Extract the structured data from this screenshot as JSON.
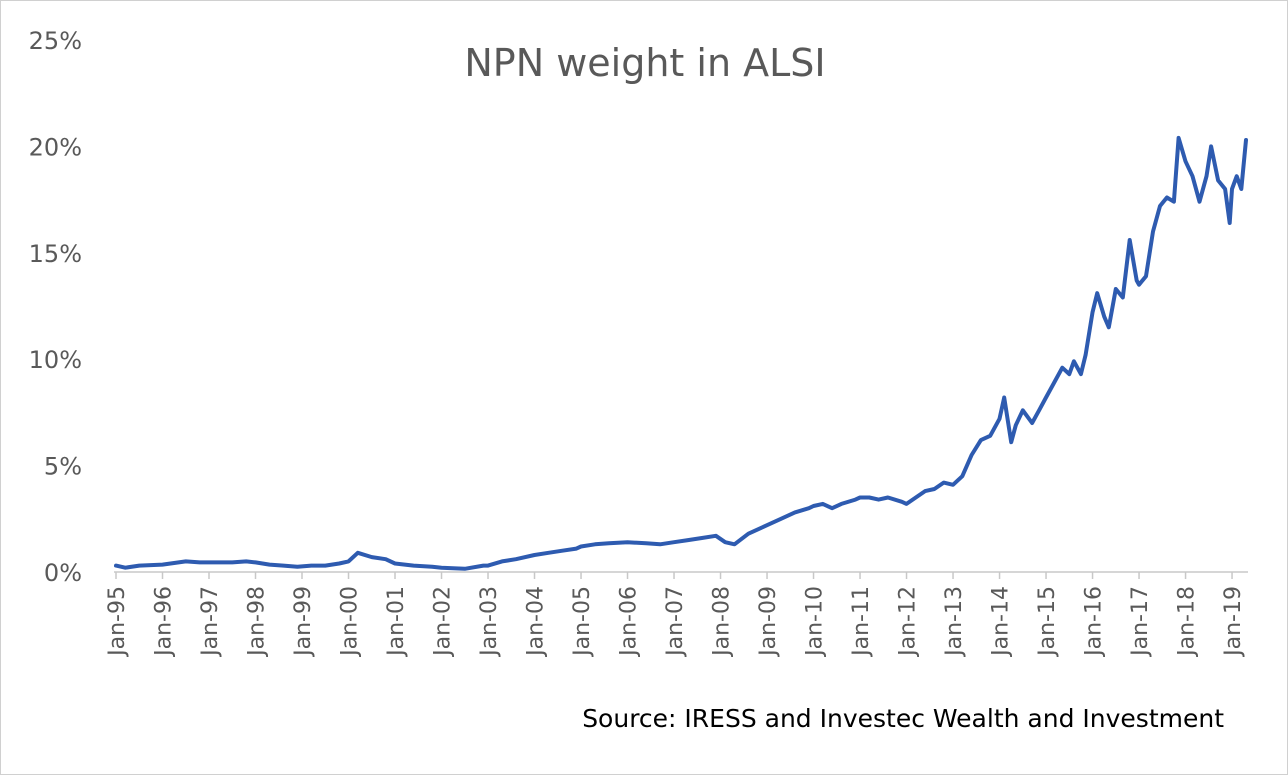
{
  "chart_data": {
    "type": "line",
    "title": "NPN weight in ALSI",
    "xlabel": "",
    "ylabel": "",
    "ylim": [
      0,
      25
    ],
    "y_ticks": [
      "0%",
      "5%",
      "10%",
      "15%",
      "20%",
      "25%"
    ],
    "y_tick_values": [
      0,
      5,
      10,
      15,
      20,
      25
    ],
    "x_tick_labels": [
      "Jan-95",
      "Jan-96",
      "Jan-97",
      "Jan-98",
      "Jan-99",
      "Jan-00",
      "Jan-01",
      "Jan-02",
      "Jan-03",
      "Jan-04",
      "Jan-05",
      "Jan-06",
      "Jan-07",
      "Jan-08",
      "Jan-09",
      "Jan-10",
      "Jan-11",
      "Jan-12",
      "Jan-13",
      "Jan-14",
      "Jan-15",
      "Jan-16",
      "Jan-17",
      "Jan-18",
      "Jan-19"
    ],
    "xlim": [
      1995.0,
      2019.3
    ],
    "grid": false,
    "legend": "none",
    "series": [
      {
        "name": "NPN weight in ALSI",
        "color": "#2e5bb0",
        "x": [
          1995.0,
          1995.2,
          1995.5,
          1996.0,
          1996.5,
          1996.8,
          1997.0,
          1997.5,
          1997.8,
          1998.0,
          1998.3,
          1998.6,
          1998.9,
          1999.2,
          1999.5,
          1999.8,
          2000.0,
          2000.2,
          2000.5,
          2000.8,
          2001.0,
          2001.4,
          2001.8,
          2002.0,
          2002.5,
          2002.9,
          2003.0,
          2003.3,
          2003.6,
          2004.0,
          2004.3,
          2004.6,
          2004.9,
          2005.0,
          2005.3,
          2005.6,
          2006.0,
          2006.4,
          2006.7,
          2007.0,
          2007.3,
          2007.6,
          2007.9,
          2008.1,
          2008.3,
          2008.6,
          2008.9,
          2009.0,
          2009.3,
          2009.6,
          2009.9,
          2010.0,
          2010.2,
          2010.4,
          2010.6,
          2010.9,
          2011.0,
          2011.2,
          2011.4,
          2011.6,
          2011.9,
          2012.0,
          2012.2,
          2012.4,
          2012.6,
          2012.8,
          2013.0,
          2013.2,
          2013.4,
          2013.6,
          2013.8,
          2014.0,
          2014.1,
          2014.25,
          2014.35,
          2014.5,
          2014.7,
          2014.85,
          2015.0,
          2015.2,
          2015.35,
          2015.5,
          2015.6,
          2015.75,
          2015.85,
          2016.0,
          2016.1,
          2016.25,
          2016.35,
          2016.5,
          2016.65,
          2016.8,
          2016.95,
          2017.0,
          2017.15,
          2017.3,
          2017.45,
          2017.6,
          2017.75,
          2017.85,
          2018.0,
          2018.15,
          2018.3,
          2018.45,
          2018.55,
          2018.7,
          2018.85,
          2018.95,
          2019.0,
          2019.1,
          2019.2,
          2019.3
        ],
        "values": [
          0.3,
          0.2,
          0.3,
          0.35,
          0.5,
          0.45,
          0.45,
          0.45,
          0.5,
          0.45,
          0.35,
          0.3,
          0.25,
          0.3,
          0.3,
          0.4,
          0.5,
          0.9,
          0.7,
          0.6,
          0.4,
          0.3,
          0.25,
          0.2,
          0.15,
          0.3,
          0.3,
          0.5,
          0.6,
          0.8,
          0.9,
          1.0,
          1.1,
          1.2,
          1.3,
          1.35,
          1.4,
          1.35,
          1.3,
          1.4,
          1.5,
          1.6,
          1.7,
          1.4,
          1.3,
          1.8,
          2.1,
          2.2,
          2.5,
          2.8,
          3.0,
          3.1,
          3.2,
          3.0,
          3.2,
          3.4,
          3.5,
          3.5,
          3.4,
          3.5,
          3.3,
          3.2,
          3.5,
          3.8,
          3.9,
          4.2,
          4.1,
          4.5,
          5.5,
          6.2,
          6.4,
          7.2,
          8.2,
          6.1,
          6.9,
          7.6,
          7.0,
          7.6,
          8.2,
          9.0,
          9.6,
          9.3,
          9.9,
          9.3,
          10.2,
          12.2,
          13.1,
          12.0,
          11.5,
          13.3,
          12.9,
          15.6,
          13.7,
          13.5,
          13.9,
          16.0,
          17.2,
          17.6,
          17.4,
          20.4,
          19.3,
          18.6,
          17.4,
          18.6,
          20.0,
          18.4,
          18.0,
          16.4,
          18.0,
          18.6,
          18.0,
          20.3
        ]
      }
    ]
  },
  "source_note": "Source: IRESS and Investec Wealth and Investment"
}
